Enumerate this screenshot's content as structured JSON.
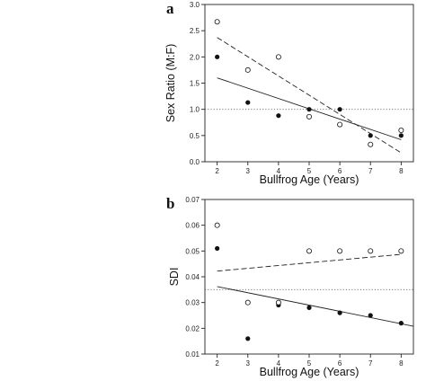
{
  "chart_data": [
    {
      "type": "scatter",
      "panel_label": "a",
      "xlabel": "Bullfrog Age (Years)",
      "ylabel": "Sex Ratio (M:F)",
      "xlim": [
        1.6,
        8.4
      ],
      "ylim": [
        0.0,
        3.0
      ],
      "x_ticks": [
        "2",
        "3",
        "4",
        "5",
        "6",
        "7",
        "8"
      ],
      "y_ticks": [
        "0.0",
        "0.5",
        "1.0",
        "1.5",
        "2.0",
        "2.5",
        "3.0"
      ],
      "reference_line": {
        "y": 1.0,
        "style": "dotted"
      },
      "series": [
        {
          "marker": "filled",
          "points": [
            {
              "x": 2,
              "y": 2.0
            },
            {
              "x": 3,
              "y": 1.13
            },
            {
              "x": 4,
              "y": 0.88
            },
            {
              "x": 5,
              "y": 1.0
            },
            {
              "x": 6,
              "y": 1.0
            },
            {
              "x": 7,
              "y": 0.5
            },
            {
              "x": 8,
              "y": 0.5
            }
          ],
          "trend": {
            "style": "solid",
            "x": [
              2,
              8
            ],
            "y": [
              1.6,
              0.42
            ]
          }
        },
        {
          "marker": "open",
          "points": [
            {
              "x": 2,
              "y": 2.67
            },
            {
              "x": 3,
              "y": 1.75
            },
            {
              "x": 4,
              "y": 2.0
            },
            {
              "x": 5,
              "y": 0.86
            },
            {
              "x": 6,
              "y": 0.71
            },
            {
              "x": 7,
              "y": 0.33
            },
            {
              "x": 8,
              "y": 0.6
            }
          ],
          "trend": {
            "style": "dashed",
            "x": [
              2,
              8
            ],
            "y": [
              2.37,
              0.17
            ]
          }
        }
      ]
    },
    {
      "type": "scatter",
      "panel_label": "b",
      "xlabel": "Bullfrog Age (Years)",
      "ylabel": "SDI",
      "xlim": [
        1.6,
        8.4
      ],
      "ylim": [
        0.01,
        0.07
      ],
      "x_ticks": [
        "2",
        "3",
        "4",
        "5",
        "6",
        "7",
        "8"
      ],
      "y_ticks": [
        "0.01",
        "0.02",
        "0.03",
        "0.04",
        "0.05",
        "0.06",
        "0.07"
      ],
      "reference_line": {
        "y": 0.035,
        "style": "dotted"
      },
      "series": [
        {
          "marker": "filled",
          "points": [
            {
              "x": 2,
              "y": 0.051
            },
            {
              "x": 3,
              "y": 0.016
            },
            {
              "x": 4,
              "y": 0.029
            },
            {
              "x": 5,
              "y": 0.028
            },
            {
              "x": 6,
              "y": 0.026
            },
            {
              "x": 7,
              "y": 0.025
            },
            {
              "x": 8,
              "y": 0.022
            }
          ],
          "trend": {
            "style": "solid",
            "x": [
              2,
              8.4
            ],
            "y": [
              0.0362,
              0.0208
            ]
          }
        },
        {
          "marker": "open",
          "points": [
            {
              "x": 2,
              "y": 0.06
            },
            {
              "x": 3,
              "y": 0.03
            },
            {
              "x": 4,
              "y": 0.03
            },
            {
              "x": 5,
              "y": 0.05
            },
            {
              "x": 6,
              "y": 0.05
            },
            {
              "x": 7,
              "y": 0.05
            },
            {
              "x": 8,
              "y": 0.05
            }
          ],
          "trend": {
            "style": "dashed",
            "x": [
              2,
              8
            ],
            "y": [
              0.0422,
              0.0487
            ]
          }
        }
      ]
    }
  ]
}
